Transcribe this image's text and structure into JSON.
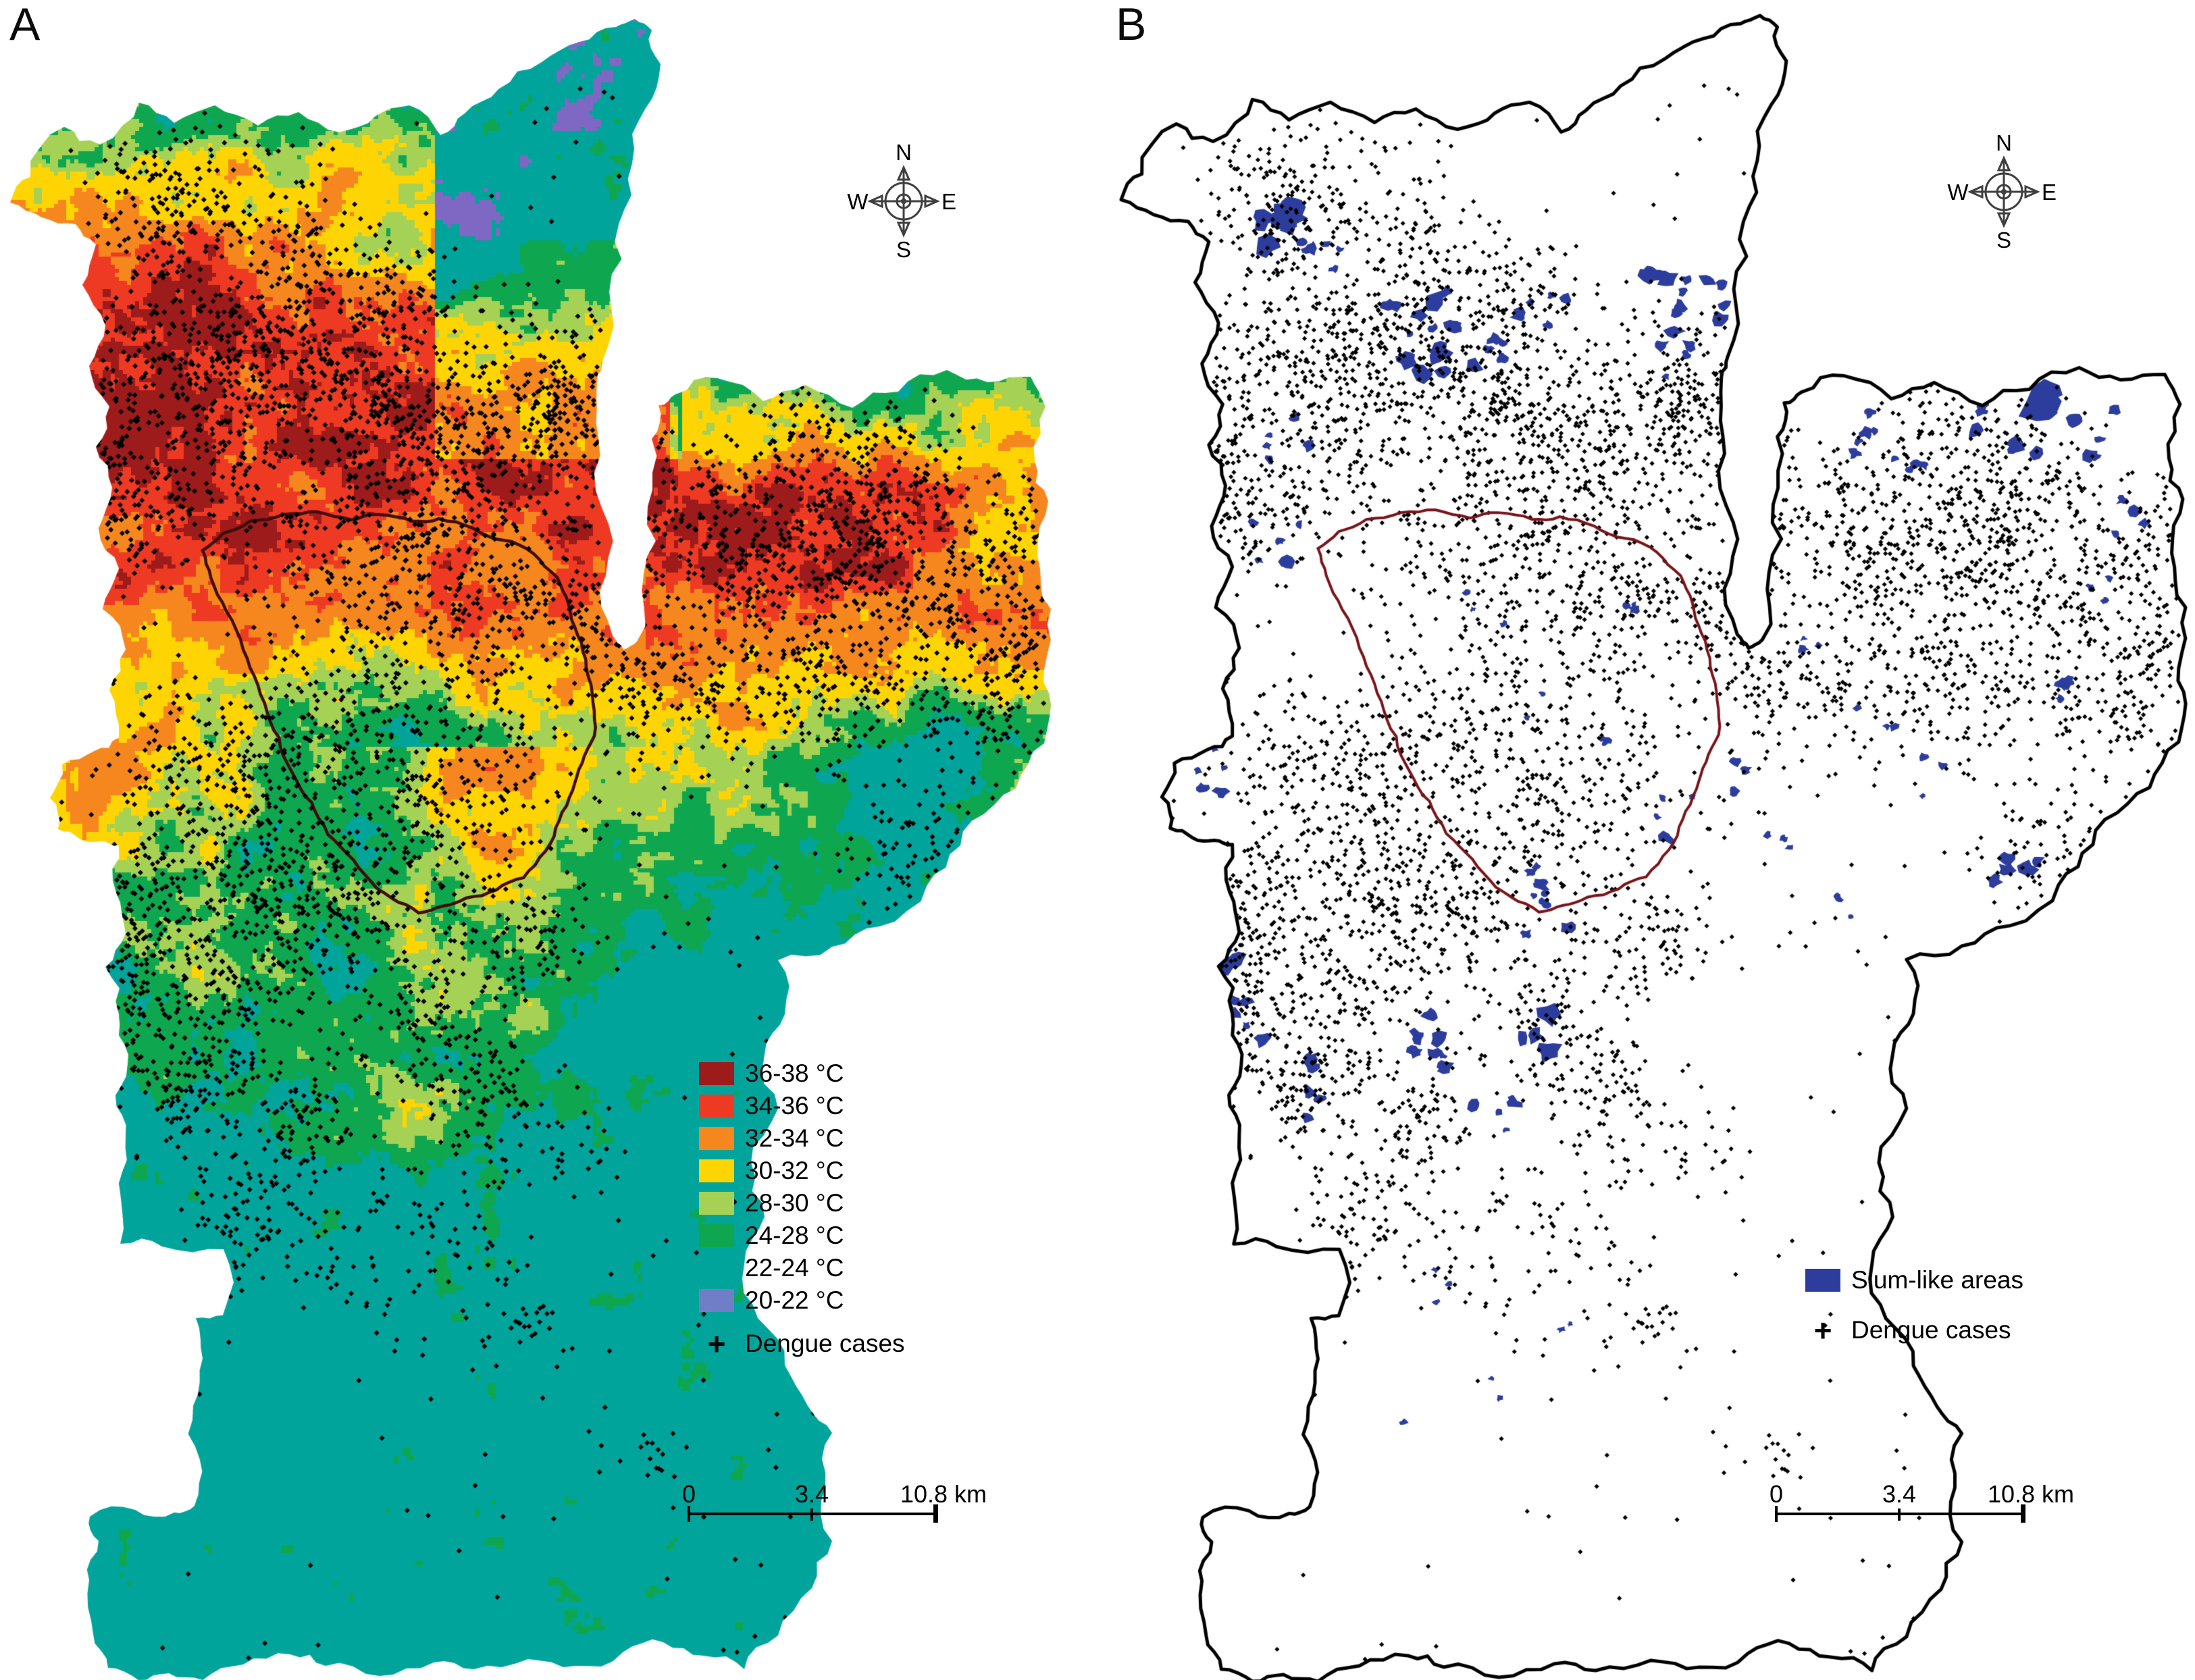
{
  "panel_a": {
    "label": "A"
  },
  "panel_b": {
    "label": "B"
  },
  "compass": {
    "north": "N",
    "east": "E",
    "south": "S",
    "west": "W"
  },
  "legend_a": {
    "items": [
      {
        "label": "36-38 °C",
        "color": "#9E1B1B"
      },
      {
        "label": "34-36 °C",
        "color": "#EE3A23"
      },
      {
        "label": "32-34 °C",
        "color": "#F6871F"
      },
      {
        "label": "30-32 °C",
        "color": "#FFD403"
      },
      {
        "label": "28-30 °C",
        "color": "#A5D155"
      },
      {
        "label": "24-28 °C",
        "color": "#0EA74F"
      },
      {
        "label": "22-24 °C",
        "color": "#00A49B"
      },
      {
        "label": "20-22 °C",
        "color": "#6F7EC6"
      }
    ],
    "dengue": {
      "symbol": "+",
      "label": "Dengue cases"
    }
  },
  "legend_b": {
    "slum": {
      "label": "Slum-like areas",
      "color": "#2C3D9E"
    },
    "dengue": {
      "symbol": "+",
      "label": "Dengue cases"
    }
  },
  "scale_bar": {
    "start": "0",
    "mid": "3.4",
    "end": "10.8 km"
  },
  "map_style": {
    "outline_color": "#000000",
    "central_outline_a": "#400C0C",
    "central_outline_b": "#7A1418",
    "dengue_color": "#000000",
    "purple_color": "#7F68C4",
    "background": "#FFFFFF"
  }
}
